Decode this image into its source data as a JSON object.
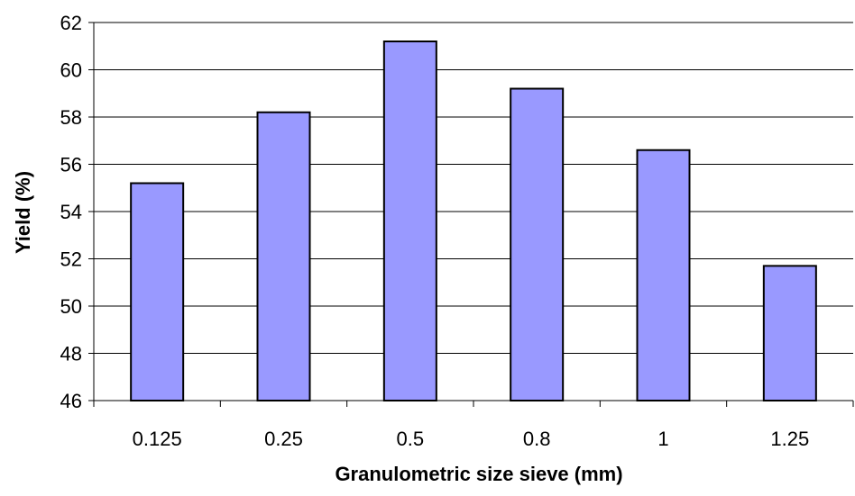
{
  "chart_data": {
    "type": "bar",
    "title": "",
    "xlabel": "Granulometric size sieve (mm)",
    "ylabel": "Yield (%)",
    "categories": [
      "0.125",
      "0.25",
      "0.5",
      "0.8",
      "1",
      "1.25"
    ],
    "values": [
      55.2,
      58.2,
      61.2,
      59.2,
      56.6,
      51.7
    ],
    "ylim": [
      46,
      62
    ],
    "yticks": [
      "46",
      "48",
      "50",
      "52",
      "54",
      "56",
      "58",
      "60",
      "62"
    ],
    "grid": true,
    "legend": "none",
    "colors": {
      "bar_fill": "#9999ff",
      "bar_stroke": "#000000",
      "grid": "#000000",
      "axis": "#000000"
    }
  }
}
